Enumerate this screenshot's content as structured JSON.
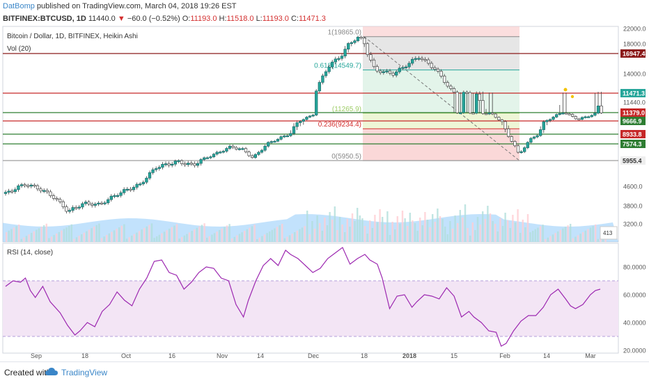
{
  "header": {
    "author": "DatBomp",
    "published": "published on TradingView.com, March 04, 2018 19:26 EST",
    "symbol": "BITFINEX:BTCUSD, 1D",
    "last": "11440.0",
    "change": "−60.0 (−0.52%)",
    "o_label": "O:",
    "o_val": "11193.0",
    "h_label": "H:",
    "h_val": "11518.0",
    "l_label": "L:",
    "l_val": "11193.0",
    "c_label": "C:",
    "c_val": "11471.3"
  },
  "footer": {
    "created": "Created with",
    "brand": "TradingView"
  },
  "colors": {
    "up": "#26a69a",
    "upDark": "#1e6b6b",
    "down": "#ef5350",
    "rsi": "#9c27b0",
    "rsiBand": "#f3e5f5",
    "fibRed": "#f8c8c8",
    "fibGray": "#e6e6e6",
    "fibGreen": "#eef6d6",
    "volBlue": "#90caf9",
    "hlineRed": "#c62828",
    "hlineDark": "#8b1a1a",
    "hlineGreen": "#2e7d32"
  },
  "chart_data": [
    {
      "type": "candlestick",
      "title": "Bitcoin / Dollar, 1D, BITFINEX, Heikin Ashi",
      "volume_label": "Vol (20)",
      "y_ticks": [
        "22000.0",
        "18000.0",
        "14000.0",
        "11440.0",
        "9666.9",
        "8933.8",
        "7574.3",
        "5955.4",
        "4600.0",
        "3800.0",
        "3200.0"
      ],
      "x_ticks": [
        "Sep",
        "18",
        "Oct",
        "16",
        "Nov",
        "14",
        "Dec",
        "18",
        "2018",
        "15",
        "Feb",
        "14",
        "Mar"
      ],
      "price_series": [
        {
          "date": "2017-08-26",
          "close": 4300
        },
        {
          "date": "2017-09-01",
          "close": 4700
        },
        {
          "date": "2017-09-05",
          "close": 4550
        },
        {
          "date": "2017-09-10",
          "close": 4200
        },
        {
          "date": "2017-09-15",
          "close": 3600
        },
        {
          "date": "2017-09-20",
          "close": 3900
        },
        {
          "date": "2017-09-25",
          "close": 3850
        },
        {
          "date": "2017-10-01",
          "close": 4300
        },
        {
          "date": "2017-10-08",
          "close": 4700
        },
        {
          "date": "2017-10-13",
          "close": 5600
        },
        {
          "date": "2017-10-20",
          "close": 5900
        },
        {
          "date": "2017-10-25",
          "close": 5700
        },
        {
          "date": "2017-11-01",
          "close": 6600
        },
        {
          "date": "2017-11-06",
          "close": 7300
        },
        {
          "date": "2017-11-10",
          "close": 7000
        },
        {
          "date": "2017-11-13",
          "close": 6200
        },
        {
          "date": "2017-11-18",
          "close": 7700
        },
        {
          "date": "2017-11-26",
          "close": 9200
        },
        {
          "date": "2017-12-02",
          "close": 10800
        },
        {
          "date": "2017-12-07",
          "close": 15000
        },
        {
          "date": "2017-12-12",
          "close": 17000
        },
        {
          "date": "2017-12-17",
          "close": 19865
        },
        {
          "date": "2017-12-22",
          "close": 14500
        },
        {
          "date": "2017-12-28",
          "close": 14000
        },
        {
          "date": "2018-01-05",
          "close": 16500
        },
        {
          "date": "2018-01-10",
          "close": 14800
        },
        {
          "date": "2018-01-16",
          "close": 11500
        },
        {
          "date": "2018-01-22",
          "close": 11400
        },
        {
          "date": "2018-01-28",
          "close": 11200
        },
        {
          "date": "2018-02-03",
          "close": 8500
        },
        {
          "date": "2018-02-06",
          "close": 6500
        },
        {
          "date": "2018-02-10",
          "close": 8300
        },
        {
          "date": "2018-02-15",
          "close": 9800
        },
        {
          "date": "2018-02-20",
          "close": 11500
        },
        {
          "date": "2018-02-25",
          "close": 10000
        },
        {
          "date": "2018-03-04",
          "close": 11471
        }
      ],
      "fib_levels": [
        {
          "label": "1(19865.0)",
          "price": 19865
        },
        {
          "label": "0.618(14549.7)",
          "price": 14549.7
        },
        {
          "label": "(11265.9)",
          "price": 11265.9
        },
        {
          "label": "0.236(9234.4)",
          "price": 9234.4
        },
        {
          "label": "0(5950.5)",
          "price": 5950.5
        }
      ],
      "horizontal_lines": [
        {
          "label": "16947.4",
          "price": 16947.4
        },
        {
          "label": "11471.3",
          "price": 11471.3
        },
        {
          "label": "11379.0",
          "price": 11379
        },
        {
          "label": "9666.9",
          "price": 9666.9
        },
        {
          "label": "8933.8",
          "price": 8933.8
        },
        {
          "label": "7574.3",
          "price": 7574.3
        },
        {
          "label": "5955.4",
          "price": 5955.4
        }
      ],
      "volume_value_label": "413"
    },
    {
      "type": "line",
      "title": "RSI (14, close)",
      "y_ticks": [
        "80.0000",
        "60.0000",
        "40.0000",
        "20.0000"
      ],
      "ylim": [
        18,
        97
      ],
      "band": [
        30,
        70
      ],
      "series": [
        {
          "values": [
            [
              0,
              66
            ],
            [
              3,
              70
            ],
            [
              6,
              69
            ],
            [
              8,
              72
            ],
            [
              10,
              63
            ],
            [
              12,
              58
            ],
            [
              15,
              66
            ],
            [
              18,
              55
            ],
            [
              22,
              47
            ],
            [
              25,
              38
            ],
            [
              28,
              31
            ],
            [
              30,
              34
            ],
            [
              33,
              40
            ],
            [
              36,
              37
            ],
            [
              39,
              48
            ],
            [
              42,
              53
            ],
            [
              45,
              62
            ],
            [
              48,
              56
            ],
            [
              51,
              52
            ],
            [
              54,
              64
            ],
            [
              57,
              72
            ],
            [
              60,
              84
            ],
            [
              63,
              85
            ],
            [
              66,
              76
            ],
            [
              69,
              74
            ],
            [
              72,
              64
            ],
            [
              75,
              69
            ],
            [
              78,
              76
            ],
            [
              81,
              80
            ],
            [
              84,
              79
            ],
            [
              87,
              72
            ],
            [
              90,
              70
            ],
            [
              93,
              53
            ],
            [
              96,
              44
            ],
            [
              98,
              56
            ],
            [
              101,
              70
            ],
            [
              104,
              81
            ],
            [
              107,
              86
            ],
            [
              110,
              81
            ],
            [
              113,
              92
            ],
            [
              115,
              89
            ],
            [
              118,
              86
            ],
            [
              121,
              81
            ],
            [
              124,
              76
            ],
            [
              127,
              79
            ],
            [
              130,
              86
            ],
            [
              133,
              90
            ],
            [
              136,
              94
            ],
            [
              139,
              82
            ],
            [
              142,
              86
            ],
            [
              145,
              89
            ],
            [
              147,
              85
            ],
            [
              150,
              82
            ],
            [
              152,
              72
            ],
            [
              155,
              50
            ],
            [
              158,
              59
            ],
            [
              161,
              60
            ],
            [
              164,
              51
            ],
            [
              166,
              55
            ],
            [
              169,
              60
            ],
            [
              172,
              59
            ],
            [
              175,
              57
            ],
            [
              178,
              65
            ],
            [
              181,
              59
            ],
            [
              184,
              44
            ],
            [
              187,
              48
            ],
            [
              189,
              44
            ],
            [
              192,
              40
            ],
            [
              195,
              34
            ],
            [
              198,
              33
            ],
            [
              200,
              23
            ],
            [
              202,
              25
            ],
            [
              205,
              34
            ],
            [
              208,
              41
            ],
            [
              211,
              45
            ],
            [
              214,
              45
            ],
            [
              217,
              51
            ],
            [
              220,
              60
            ],
            [
              223,
              64
            ],
            [
              226,
              57
            ],
            [
              228,
              52
            ],
            [
              230,
              50
            ],
            [
              233,
              53
            ],
            [
              236,
              60
            ],
            [
              238,
              63
            ],
            [
              240,
              64
            ]
          ]
        }
      ]
    }
  ]
}
